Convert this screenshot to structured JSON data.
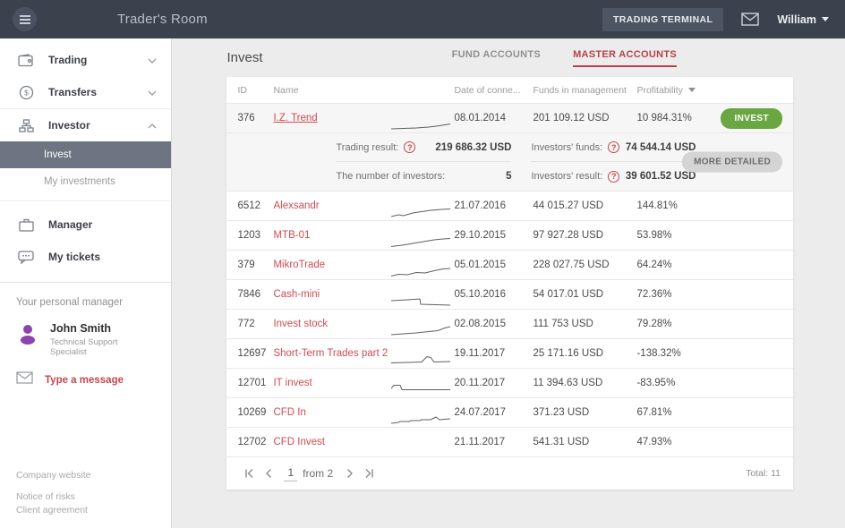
{
  "colors": {
    "topbar_bg": "#3b424e",
    "accent_red": "#c4474e",
    "tab_red": "#b5424a",
    "invest_green": "#6aa742",
    "active_item_bg": "#6e7482",
    "avatar_purple": "#8e44ad"
  },
  "topbar": {
    "title": "Trader's Room",
    "trading_terminal_label": "TRADING TERMINAL",
    "user_name": "William"
  },
  "sidebar": {
    "items": [
      {
        "label": "Trading",
        "icon": "wallet-icon",
        "chevron": "down"
      },
      {
        "label": "Transfers",
        "icon": "coin-icon",
        "chevron": "down"
      },
      {
        "label": "Investor",
        "icon": "hierarchy-icon",
        "chevron": "up",
        "children": [
          {
            "label": "Invest",
            "active": true
          },
          {
            "label": "My investments",
            "active": false
          }
        ]
      },
      {
        "label": "Manager",
        "icon": "briefcase-icon"
      },
      {
        "label": "My tickets",
        "icon": "chat-icon"
      }
    ],
    "personal_manager": {
      "heading": "Your personal manager",
      "name": "John Smith",
      "role": "Technical Support Specialist",
      "message_link": "Type a message"
    },
    "footer_links": [
      "Company website",
      "Notice of risks",
      "Client agreement"
    ]
  },
  "main": {
    "page_title": "Invest",
    "tabs": [
      {
        "label": "FUND ACCOUNTS",
        "active": false
      },
      {
        "label": "MASTER ACCOUNTS",
        "active": true
      }
    ],
    "table": {
      "columns": {
        "id": "ID",
        "name": "Name",
        "date": "Date of conne...",
        "funds": "Funds in management",
        "profitability": "Profitability"
      },
      "rows": [
        {
          "id": "376",
          "name": "I.Z. Trend",
          "underlined": true,
          "highlight": true,
          "date": "08.01.2014",
          "funds": "201 109.12 USD",
          "profitability": "10 984.31%",
          "action": "INVEST",
          "spark": [
            [
              0,
              16
            ],
            [
              14,
              15.5
            ],
            [
              28,
              15
            ],
            [
              42,
              14
            ],
            [
              54,
              12.5
            ],
            [
              66,
              10.5
            ]
          ]
        },
        {
          "id": "6512",
          "name": "Alexsandr",
          "date": "21.07.2016",
          "funds": "44 015.27 USD",
          "profitability": "144.81%",
          "spark": [
            [
              0,
              16
            ],
            [
              8,
              14
            ],
            [
              14,
              15
            ],
            [
              24,
              12
            ],
            [
              34,
              10.5
            ],
            [
              44,
              9
            ],
            [
              56,
              8
            ],
            [
              66,
              7.5
            ]
          ]
        },
        {
          "id": "1203",
          "name": "MTB-01",
          "date": "29.10.2015",
          "funds": "97 927.28 USD",
          "profitability": "53.98%",
          "spark": [
            [
              0,
              16.5
            ],
            [
              12,
              15
            ],
            [
              24,
              13
            ],
            [
              36,
              11
            ],
            [
              48,
              9
            ],
            [
              58,
              8
            ],
            [
              66,
              7.5
            ]
          ]
        },
        {
          "id": "379",
          "name": "MikroTrade",
          "date": "05.01.2015",
          "funds": "228 027.75 USD",
          "profitability": "64.24%",
          "spark": [
            [
              0,
              16.5
            ],
            [
              8,
              14.5
            ],
            [
              18,
              15
            ],
            [
              28,
              12.5
            ],
            [
              38,
              13
            ],
            [
              48,
              10.5
            ],
            [
              58,
              8.5
            ],
            [
              66,
              8
            ]
          ]
        },
        {
          "id": "7846",
          "name": "Cash-mini",
          "date": "05.10.2016",
          "funds": "54 017.01 USD",
          "profitability": "72.36%",
          "spark": [
            [
              0,
              11
            ],
            [
              18,
              10
            ],
            [
              32,
              9
            ],
            [
              33,
              15
            ],
            [
              50,
              15.5
            ],
            [
              66,
              16
            ]
          ]
        },
        {
          "id": "772",
          "name": "Invest stock",
          "date": "02.08.2015",
          "funds": "111 753 USD",
          "profitability": "79.28%",
          "spark": [
            [
              0,
              16
            ],
            [
              14,
              15
            ],
            [
              28,
              14
            ],
            [
              42,
              12.5
            ],
            [
              52,
              11.5
            ],
            [
              60,
              8.5
            ],
            [
              66,
              7
            ]
          ]
        },
        {
          "id": "12697",
          "name": "Short-Term Trades part 2",
          "date": "19.11.2017",
          "funds": "25 171.16 USD",
          "profitability": "-138.32%",
          "spark": [
            [
              0,
              14.5
            ],
            [
              18,
              14
            ],
            [
              34,
              13.5
            ],
            [
              40,
              7.5
            ],
            [
              44,
              8.5
            ],
            [
              48,
              13.5
            ],
            [
              66,
              13
            ]
          ]
        },
        {
          "id": "12701",
          "name": "IT invest",
          "date": "20.11.2017",
          "funds": "11 394.63 USD",
          "profitability": "-83.95%",
          "spark": [
            [
              0,
              10
            ],
            [
              3,
              6.5
            ],
            [
              10,
              6.5
            ],
            [
              12,
              11.5
            ],
            [
              34,
              11.5
            ],
            [
              66,
              11.5
            ]
          ]
        },
        {
          "id": "10269",
          "name": "CFD In",
          "date": "24.07.2017",
          "funds": "371.23 USD",
          "profitability": "67.81%",
          "spark": [
            [
              0,
              16
            ],
            [
              8,
              15
            ],
            [
              10,
              14
            ],
            [
              20,
              14
            ],
            [
              22,
              13
            ],
            [
              32,
              13
            ],
            [
              34,
              12
            ],
            [
              44,
              12
            ],
            [
              50,
              9
            ],
            [
              54,
              12
            ],
            [
              66,
              11
            ]
          ]
        },
        {
          "id": "12702",
          "name": "CFD Invest",
          "date": "21.11.2017",
          "funds": "541.31 USD",
          "profitability": "47.93%",
          "spark": []
        }
      ],
      "expanded": {
        "trading_result_label": "Trading result:",
        "trading_result_value": "219 686.32 USD",
        "investors_funds_label": "Investors' funds:",
        "investors_funds_value": "74 544.14 USD",
        "number_of_investors_label": "The number of investors:",
        "number_of_investors_value": "5",
        "investors_result_label": "Investors' result:",
        "investors_result_value": "39 601.52 USD",
        "more_detailed_label": "MORE DETAILED"
      },
      "pagination": {
        "current_page": "1",
        "of_label": "from 2",
        "total_label": "Total: 11"
      }
    }
  }
}
